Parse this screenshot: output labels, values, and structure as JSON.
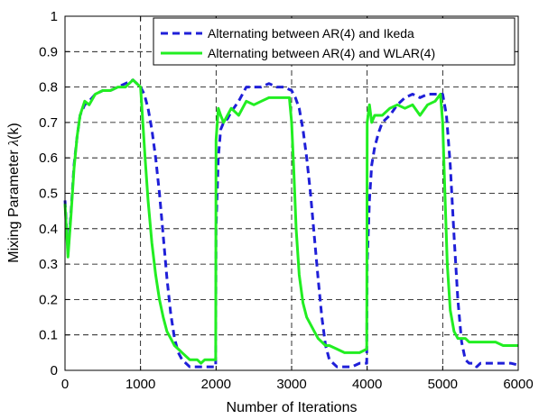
{
  "chart_data": {
    "type": "line",
    "title": "",
    "xlabel": "Number of Iterations",
    "ylabel_main": "Mixing Parameter ",
    "ylabel_symbol": "λ",
    "ylabel_arg": "(k)",
    "xlim": [
      0,
      6000
    ],
    "ylim": [
      0,
      1
    ],
    "x_ticks": [
      0,
      1000,
      2000,
      3000,
      4000,
      5000,
      6000
    ],
    "x_tick_labels": [
      "0",
      "1000",
      "2000",
      "3000",
      "4000",
      "5000",
      "6000"
    ],
    "y_ticks": [
      0,
      0.1,
      0.2,
      0.3,
      0.4,
      0.5,
      0.6,
      0.7,
      0.8,
      0.9,
      1
    ],
    "y_tick_labels": [
      "0",
      "0.1",
      "0.2",
      "0.3",
      "0.4",
      "0.5",
      "0.6",
      "0.7",
      "0.8",
      "0.9",
      "1"
    ],
    "grid": true,
    "legend_position": "top-right",
    "series": [
      {
        "name": "Alternating between AR(4) and Ikeda",
        "color": "#1f1fd8",
        "style": "dashed",
        "x": [
          0,
          40,
          80,
          120,
          160,
          200,
          260,
          320,
          400,
          500,
          600,
          700,
          800,
          900,
          1000,
          1050,
          1100,
          1150,
          1200,
          1250,
          1300,
          1350,
          1400,
          1450,
          1500,
          1550,
          1600,
          1650,
          1700,
          1750,
          1800,
          1850,
          1900,
          1950,
          1995,
          2000,
          2030,
          2060,
          2100,
          2150,
          2200,
          2300,
          2400,
          2500,
          2600,
          2700,
          2800,
          2900,
          3000,
          3050,
          3100,
          3150,
          3200,
          3250,
          3300,
          3350,
          3400,
          3450,
          3500,
          3550,
          3600,
          3650,
          3700,
          3800,
          3900,
          3995,
          4000,
          4030,
          4060,
          4100,
          4150,
          4200,
          4300,
          4400,
          4500,
          4600,
          4700,
          4800,
          4900,
          5000,
          5050,
          5100,
          5150,
          5200,
          5250,
          5300,
          5350,
          5400,
          5450,
          5500,
          5600,
          5700,
          5800,
          5900,
          6000
        ],
        "y": [
          0.48,
          0.33,
          0.45,
          0.58,
          0.66,
          0.72,
          0.75,
          0.76,
          0.78,
          0.79,
          0.79,
          0.8,
          0.81,
          0.82,
          0.8,
          0.78,
          0.74,
          0.68,
          0.6,
          0.5,
          0.38,
          0.26,
          0.16,
          0.09,
          0.05,
          0.03,
          0.02,
          0.01,
          0.01,
          0.01,
          0.01,
          0.01,
          0.01,
          0.01,
          0.01,
          0.4,
          0.6,
          0.68,
          0.7,
          0.71,
          0.73,
          0.76,
          0.8,
          0.8,
          0.8,
          0.81,
          0.8,
          0.8,
          0.79,
          0.77,
          0.74,
          0.68,
          0.6,
          0.5,
          0.38,
          0.26,
          0.15,
          0.07,
          0.03,
          0.02,
          0.01,
          0.01,
          0.01,
          0.01,
          0.02,
          0.02,
          0.3,
          0.48,
          0.58,
          0.63,
          0.67,
          0.7,
          0.72,
          0.75,
          0.77,
          0.78,
          0.77,
          0.78,
          0.78,
          0.78,
          0.72,
          0.58,
          0.38,
          0.2,
          0.08,
          0.03,
          0.02,
          0.02,
          0.01,
          0.02,
          0.02,
          0.02,
          0.02,
          0.02,
          0.015
        ]
      },
      {
        "name": "Alternating between AR(4) and WLAR(4)",
        "color": "#22ee22",
        "style": "solid",
        "x": [
          0,
          40,
          80,
          120,
          160,
          200,
          260,
          320,
          400,
          500,
          600,
          700,
          800,
          900,
          950,
          1000,
          1030,
          1060,
          1100,
          1150,
          1200,
          1250,
          1300,
          1350,
          1400,
          1450,
          1500,
          1550,
          1600,
          1650,
          1700,
          1750,
          1800,
          1850,
          1900,
          1950,
          1995,
          2000,
          2030,
          2060,
          2100,
          2200,
          2300,
          2400,
          2500,
          2600,
          2700,
          2800,
          2900,
          2970,
          3000,
          3030,
          3060,
          3100,
          3150,
          3200,
          3250,
          3300,
          3350,
          3400,
          3450,
          3500,
          3600,
          3700,
          3800,
          3900,
          3995,
          4000,
          4030,
          4060,
          4100,
          4200,
          4300,
          4400,
          4500,
          4600,
          4700,
          4800,
          4900,
          4970,
          5000,
          5030,
          5060,
          5100,
          5150,
          5200,
          5250,
          5300,
          5350,
          5400,
          5500,
          5600,
          5700,
          5800,
          5900,
          6000
        ],
        "y": [
          0.47,
          0.32,
          0.44,
          0.57,
          0.66,
          0.72,
          0.76,
          0.75,
          0.78,
          0.79,
          0.79,
          0.8,
          0.8,
          0.82,
          0.81,
          0.8,
          0.7,
          0.6,
          0.48,
          0.36,
          0.27,
          0.2,
          0.15,
          0.11,
          0.09,
          0.07,
          0.06,
          0.05,
          0.04,
          0.03,
          0.03,
          0.03,
          0.02,
          0.03,
          0.03,
          0.03,
          0.03,
          0.65,
          0.74,
          0.72,
          0.7,
          0.74,
          0.72,
          0.76,
          0.75,
          0.76,
          0.77,
          0.77,
          0.77,
          0.77,
          0.7,
          0.56,
          0.4,
          0.27,
          0.19,
          0.15,
          0.13,
          0.11,
          0.09,
          0.08,
          0.07,
          0.07,
          0.06,
          0.05,
          0.05,
          0.05,
          0.06,
          0.7,
          0.75,
          0.7,
          0.72,
          0.72,
          0.74,
          0.75,
          0.74,
          0.75,
          0.72,
          0.75,
          0.76,
          0.78,
          0.7,
          0.5,
          0.3,
          0.17,
          0.11,
          0.09,
          0.09,
          0.09,
          0.08,
          0.08,
          0.08,
          0.08,
          0.08,
          0.07,
          0.07,
          0.07
        ]
      }
    ]
  }
}
